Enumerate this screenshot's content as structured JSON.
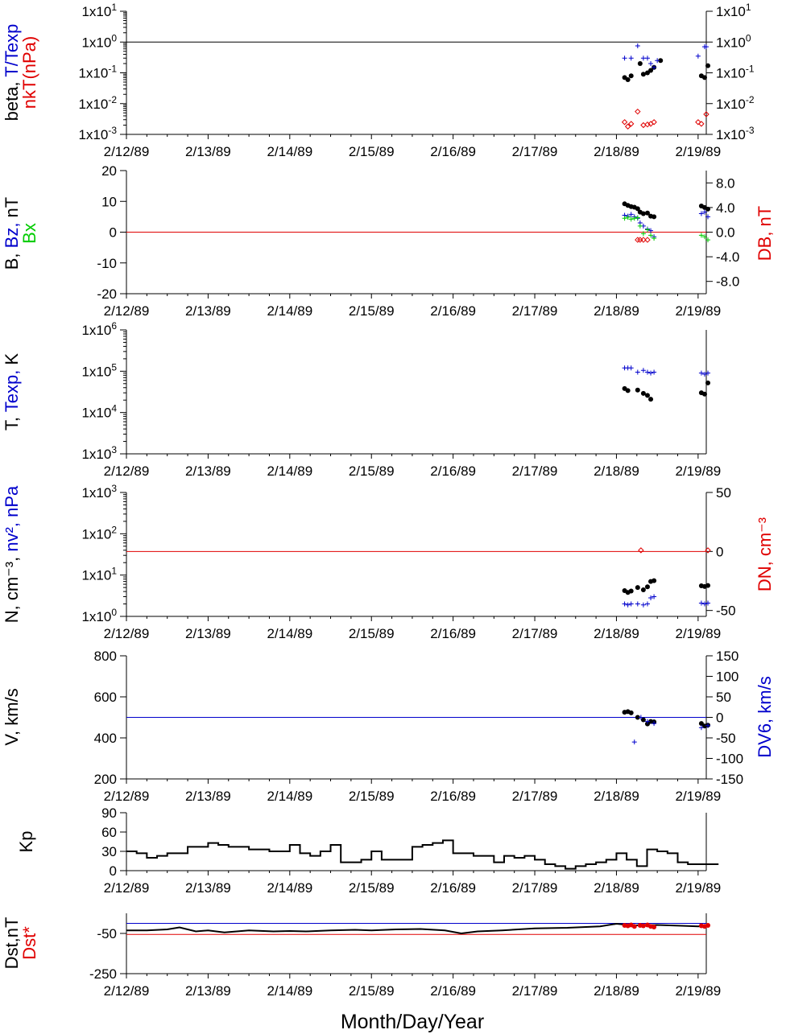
{
  "colors": {
    "black": "#000000",
    "blue": "#0000cc",
    "red": "#e00000",
    "green": "#00cc00"
  },
  "x_axis": {
    "tick_labels": [
      "2/12/89",
      "2/13/89",
      "2/14/89",
      "2/15/89",
      "2/16/89",
      "2/17/89",
      "2/18/89",
      "2/19/89"
    ],
    "label": "Month/Day/Year",
    "range_days": [
      0,
      7.1
    ]
  },
  "chart_data": [
    {
      "type": "scatter",
      "panel": "beta",
      "ylabel_parts": [
        {
          "text": "beta, ",
          "color": "black"
        },
        {
          "text": "T/Texp",
          "color": "blue"
        },
        {
          "text": "nkT(nPa)",
          "color": "red"
        }
      ],
      "yscale": "log",
      "ylim": [
        0.001,
        10
      ],
      "ticks_left": [
        {
          "v": 10,
          "b": "1x10",
          "e": "1"
        },
        {
          "v": 1,
          "b": "1x10",
          "e": "0"
        },
        {
          "v": 0.1,
          "b": "1x10",
          "e": "-1"
        },
        {
          "v": 0.01,
          "b": "1x10",
          "e": "-2"
        },
        {
          "v": 0.001,
          "b": "1x10",
          "e": "-3"
        }
      ],
      "ticks_right": [
        {
          "v": 10,
          "b": "1x10",
          "e": "1"
        },
        {
          "v": 1,
          "b": "1x10",
          "e": "0"
        },
        {
          "v": 0.1,
          "b": "1x10",
          "e": "-1"
        },
        {
          "v": 0.01,
          "b": "1x10",
          "e": "-2"
        },
        {
          "v": 0.001,
          "b": "1x10",
          "e": "-3"
        }
      ],
      "hlines": [
        {
          "y": 1,
          "color": "black"
        }
      ],
      "series": [
        {
          "marker": "dot",
          "color": "black",
          "x": [
            6.1,
            6.14,
            6.18,
            6.29,
            6.33,
            6.38,
            6.42,
            6.46,
            6.54,
            7.04,
            7.08,
            7.12
          ],
          "y": [
            0.07,
            0.06,
            0.08,
            0.2,
            0.09,
            0.1,
            0.12,
            0.15,
            0.25,
            0.08,
            0.07,
            0.17
          ]
        },
        {
          "marker": "plus",
          "color": "blue",
          "x": [
            6.1,
            6.18,
            6.26,
            6.33,
            6.38,
            6.42,
            6.46,
            6.5,
            7.0,
            7.08,
            7.1
          ],
          "y": [
            0.3,
            0.3,
            0.75,
            0.3,
            0.3,
            0.2,
            0.15,
            0.25,
            0.35,
            0.7,
            0.7
          ]
        },
        {
          "marker": "diamond",
          "color": "red",
          "x": [
            6.1,
            6.14,
            6.18,
            6.26,
            6.33,
            6.38,
            6.42,
            6.46,
            7.0,
            7.04,
            7.1
          ],
          "y": [
            0.0025,
            0.0018,
            0.0022,
            0.0055,
            0.002,
            0.0021,
            0.0022,
            0.0025,
            0.0025,
            0.0022,
            0.0045
          ]
        }
      ]
    },
    {
      "type": "scatter",
      "panel": "B",
      "ylabel_parts": [
        {
          "text": "B, ",
          "color": "black"
        },
        {
          "text": "Bz, ",
          "color": "blue"
        },
        {
          "text": "nT",
          "color": "black"
        },
        {
          "text": "Bx",
          "color": "green"
        }
      ],
      "ylabel_right": {
        "text": "DB, nT",
        "color": "red"
      },
      "ylim": [
        -20,
        20
      ],
      "ticks_left": [
        "20",
        "10",
        "0",
        "-10",
        "-20"
      ],
      "ticks_left_values": [
        20,
        10,
        0,
        -10,
        -20
      ],
      "ticks_right": [
        "8.0",
        "4.0",
        "0.0",
        "-4.0",
        "-8.0"
      ],
      "ticks_right_values": [
        8,
        4,
        0,
        -4,
        -8
      ],
      "ylim_right": [
        -10,
        10
      ],
      "hlines": [
        {
          "y": 0,
          "color": "red"
        }
      ],
      "series": [
        {
          "marker": "dot",
          "color": "black",
          "x": [
            6.1,
            6.14,
            6.18,
            6.22,
            6.26,
            6.29,
            6.33,
            6.38,
            6.42,
            6.46,
            7.04,
            7.08,
            7.12
          ],
          "y": [
            9.2,
            8.7,
            8.3,
            8.1,
            7.6,
            6.5,
            6.0,
            6.2,
            5.2,
            5.0,
            8.5,
            8.0,
            7.5
          ]
        },
        {
          "marker": "plus",
          "color": "blue",
          "x": [
            6.1,
            6.14,
            6.18,
            6.22,
            6.26,
            6.29,
            6.33,
            6.38,
            6.42,
            6.46,
            7.04,
            7.08,
            7.12
          ],
          "y": [
            5.5,
            5.2,
            5.8,
            5.0,
            4.5,
            3.0,
            2.0,
            1.0,
            0.5,
            -1.5,
            6.0,
            6.5,
            5.0
          ]
        },
        {
          "marker": "plus",
          "color": "green",
          "x": [
            6.1,
            6.14,
            6.18,
            6.22,
            6.26,
            6.29,
            6.33,
            6.38,
            6.42,
            6.46,
            7.04,
            7.08,
            7.12
          ],
          "y": [
            4.5,
            4.8,
            4.2,
            4.5,
            4.7,
            2.0,
            -0.5,
            0.8,
            -1.0,
            -2.0,
            -1.0,
            -1.5,
            -2.5
          ]
        },
        {
          "marker": "diamond",
          "color": "red",
          "x": [
            6.26,
            6.29,
            6.33,
            6.38
          ],
          "y": [
            -2.5,
            -2.5,
            -2.5,
            -2.5
          ]
        }
      ]
    },
    {
      "type": "scatter",
      "panel": "T",
      "ylabel_parts": [
        {
          "text": "T, ",
          "color": "black"
        },
        {
          "text": "Texp, ",
          "color": "blue"
        },
        {
          "text": "K",
          "color": "black"
        }
      ],
      "yscale": "log",
      "ylim": [
        1000,
        1000000
      ],
      "ticks_left": [
        {
          "v": 1000000,
          "b": "1x10",
          "e": "6"
        },
        {
          "v": 100000,
          "b": "1x10",
          "e": "5"
        },
        {
          "v": 10000,
          "b": "1x10",
          "e": "4"
        },
        {
          "v": 1000,
          "b": "1x10",
          "e": "3"
        }
      ],
      "series": [
        {
          "marker": "dot",
          "color": "black",
          "x": [
            6.1,
            6.14,
            6.26,
            6.33,
            6.38,
            6.42,
            7.04,
            7.08,
            7.12
          ],
          "y": [
            38000,
            34000,
            35000,
            29000,
            26000,
            21000,
            30000,
            28000,
            52000
          ]
        },
        {
          "marker": "plus",
          "color": "blue",
          "x": [
            6.1,
            6.14,
            6.18,
            6.26,
            6.33,
            6.38,
            6.42,
            6.46,
            7.04,
            7.08,
            7.12
          ],
          "y": [
            120000,
            120000,
            120000,
            95000,
            105000,
            95000,
            90000,
            95000,
            90000,
            85000,
            90000
          ]
        }
      ]
    },
    {
      "type": "scatter",
      "panel": "N",
      "ylabel_parts": [
        {
          "text": "N, cm⁻³, ",
          "color": "black"
        },
        {
          "text": "nv², nPa",
          "color": "blue"
        }
      ],
      "ylabel_right": {
        "text": "DN, cm⁻³",
        "color": "red"
      },
      "yscale": "log",
      "ylim": [
        1,
        1000
      ],
      "ticks_left": [
        {
          "v": 1000,
          "b": "1x10",
          "e": "3"
        },
        {
          "v": 100,
          "b": "1x10",
          "e": "2"
        },
        {
          "v": 10,
          "b": "1x10",
          "e": "1"
        },
        {
          "v": 1,
          "b": "1x10",
          "e": "0"
        }
      ],
      "ticks_right": [
        "50",
        "0",
        "-50"
      ],
      "ticks_right_values": [
        50,
        0,
        -50
      ],
      "ylim_right": [
        -55,
        50
      ],
      "hlines": [
        {
          "y_right": 0,
          "color": "red"
        }
      ],
      "series": [
        {
          "marker": "dot",
          "color": "black",
          "x": [
            6.1,
            6.14,
            6.18,
            6.26,
            6.33,
            6.38,
            6.42,
            6.46,
            7.04,
            7.08,
            7.12
          ],
          "y": [
            4.2,
            3.8,
            4.1,
            5.0,
            4.4,
            5.2,
            7.0,
            7.3,
            5.5,
            5.3,
            5.6
          ]
        },
        {
          "marker": "plus",
          "color": "blue",
          "x": [
            6.1,
            6.14,
            6.18,
            6.26,
            6.33,
            6.38,
            6.42,
            6.46,
            7.04,
            7.08,
            7.12
          ],
          "y": [
            2.0,
            1.9,
            2.0,
            2.0,
            1.9,
            2.0,
            2.8,
            3.0,
            2.1,
            2.0,
            2.1
          ]
        },
        {
          "marker": "diamond",
          "color": "red",
          "x": [
            6.3,
            7.12
          ],
          "y_right": [
            1,
            1
          ]
        }
      ]
    },
    {
      "type": "scatter",
      "panel": "V",
      "ylabel_parts": [
        {
          "text": "V, km/s",
          "color": "black"
        }
      ],
      "ylabel_right": {
        "text": "DV6, km/s",
        "color": "blue"
      },
      "ylim": [
        200,
        800
      ],
      "ticks_left": [
        "800",
        "600",
        "400",
        "200"
      ],
      "ticks_left_values": [
        800,
        600,
        400,
        200
      ],
      "ticks_right": [
        "150",
        "100",
        "50",
        "0",
        "-50",
        "-100",
        "-150"
      ],
      "ticks_right_values": [
        150,
        100,
        50,
        0,
        -50,
        -100,
        -150
      ],
      "ylim_right": [
        -150,
        150
      ],
      "hlines": [
        {
          "y_right": 0,
          "color": "blue"
        }
      ],
      "series": [
        {
          "marker": "dot",
          "color": "black",
          "x": [
            6.1,
            6.14,
            6.18,
            6.26,
            6.33,
            6.38,
            6.42,
            6.46,
            7.04,
            7.08,
            7.12
          ],
          "y": [
            525,
            528,
            522,
            500,
            488,
            468,
            480,
            478,
            470,
            458,
            462
          ]
        },
        {
          "marker": "plus",
          "color": "blue",
          "x": [
            6.22,
            6.3,
            6.38,
            6.46,
            7.04,
            7.12
          ],
          "y_right": [
            -60,
            0,
            -10,
            -15,
            -25,
            -20
          ]
        }
      ]
    },
    {
      "type": "line",
      "panel": "Kp",
      "ylabel_parts": [
        {
          "text": "Kp",
          "color": "black"
        }
      ],
      "ylim": [
        0,
        90
      ],
      "ticks_left": [
        "90",
        "60",
        "30",
        "0"
      ],
      "ticks_left_values": [
        90,
        60,
        30,
        0
      ],
      "series": [
        {
          "color": "black",
          "x": [
            0,
            0.125,
            0.25,
            0.375,
            0.5,
            0.625,
            0.75,
            0.875,
            1,
            1.125,
            1.25,
            1.375,
            1.5,
            1.625,
            1.75,
            1.875,
            2,
            2.125,
            2.25,
            2.375,
            2.5,
            2.625,
            2.75,
            2.875,
            3,
            3.125,
            3.25,
            3.375,
            3.5,
            3.625,
            3.75,
            3.875,
            4,
            4.125,
            4.25,
            4.375,
            4.5,
            4.625,
            4.75,
            4.875,
            5,
            5.125,
            5.25,
            5.375,
            5.5,
            5.625,
            5.75,
            5.875,
            6,
            6.125,
            6.25,
            6.375,
            6.5,
            6.625,
            6.75,
            6.875,
            7,
            7.125
          ],
          "y": [
            30,
            27,
            20,
            23,
            27,
            27,
            37,
            37,
            43,
            40,
            37,
            37,
            33,
            33,
            30,
            30,
            40,
            27,
            23,
            30,
            40,
            13,
            13,
            17,
            30,
            17,
            17,
            17,
            37,
            40,
            43,
            47,
            27,
            27,
            23,
            23,
            13,
            23,
            20,
            23,
            17,
            10,
            7,
            3,
            7,
            10,
            13,
            17,
            27,
            17,
            7,
            33,
            30,
            27,
            13,
            10,
            10,
            10
          ]
        }
      ]
    },
    {
      "type": "line",
      "panel": "Dst",
      "ylabel_parts": [
        {
          "text": "Dst,nT",
          "color": "black"
        },
        {
          "text": "Dst*",
          "color": "red"
        }
      ],
      "ylim": [
        -250,
        50
      ],
      "ticks_left": [
        "-50",
        "-250"
      ],
      "ticks_left_values": [
        -50,
        -250
      ],
      "hlines": [
        {
          "y": 0,
          "color": "blue"
        },
        {
          "y": -55,
          "color": "red"
        }
      ],
      "series": [
        {
          "color": "black",
          "x": [
            0,
            0.25,
            0.5,
            0.65,
            0.85,
            1.0,
            1.2,
            1.5,
            1.8,
            2.0,
            2.2,
            2.5,
            2.8,
            3.0,
            3.3,
            3.6,
            3.9,
            4.1,
            4.3,
            4.6,
            5.0,
            5.4,
            5.8,
            6.0,
            6.2,
            6.5,
            6.8,
            7.0,
            7.12
          ],
          "y": [
            -35,
            -35,
            -30,
            -20,
            -40,
            -35,
            -45,
            -35,
            -40,
            -38,
            -40,
            -35,
            -32,
            -35,
            -30,
            -28,
            -35,
            -50,
            -40,
            -35,
            -25,
            -22,
            -15,
            -2,
            -10,
            -8,
            -12,
            -15,
            -12
          ]
        },
        {
          "marker": "dot",
          "color": "red",
          "x": [
            6.1,
            6.14,
            6.18,
            6.22,
            6.29,
            6.33,
            6.38,
            6.42,
            6.46,
            7.04,
            7.08,
            7.12
          ],
          "y": [
            -10,
            -12,
            -8,
            -15,
            -10,
            -12,
            -8,
            -15,
            -18,
            -12,
            -15,
            -10
          ]
        }
      ]
    }
  ]
}
